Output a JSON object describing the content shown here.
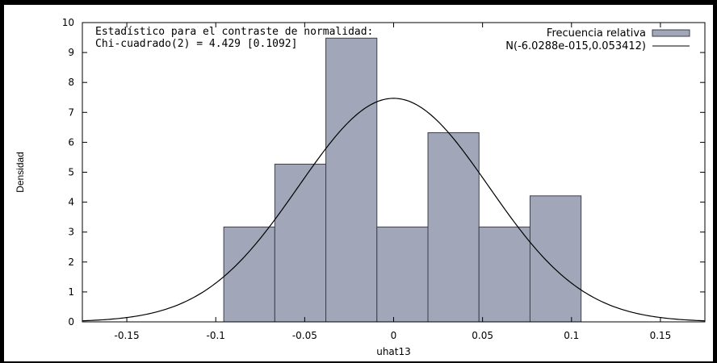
{
  "chart_data": {
    "type": "bar",
    "title": "",
    "xlabel": "uhat13",
    "ylabel": "Densidad",
    "xlim": [
      -0.175,
      0.175
    ],
    "ylim": [
      0,
      10
    ],
    "xticks": [
      -0.15,
      -0.1,
      -0.05,
      0,
      0.05,
      0.1,
      0.15
    ],
    "xtick_labels": [
      "-0.15",
      "-0.1",
      "-0.05",
      "0",
      "0.05",
      "0.1",
      "0.15"
    ],
    "yticks": [
      0,
      1,
      2,
      3,
      4,
      5,
      6,
      7,
      8,
      9,
      10
    ],
    "ytick_labels": [
      "0",
      "1",
      "2",
      "3",
      "4",
      "5",
      "6",
      "7",
      "8",
      "9",
      "10"
    ],
    "annotations": [
      "Estadístico para el contraste de normalidad:",
      "Chi-cuadrado(2) = 4.429 [0.1092]"
    ],
    "legend_position": "top-right",
    "series": [
      {
        "name": "Frecuencia relativa",
        "kind": "histogram",
        "color": "#a1a7b8",
        "edge_color": "#3c3f4c",
        "bin_width": 0.0287,
        "bin_left_edges": [
          -0.0955,
          -0.0668,
          -0.0381,
          -0.0094,
          0.0193,
          0.048,
          0.0767
        ],
        "values": [
          3.17,
          5.27,
          9.48,
          3.17,
          6.32,
          3.17,
          4.21
        ]
      },
      {
        "name": "N(-6.0288e-015,0.053412)",
        "kind": "line",
        "color": "#000000",
        "distribution": "normal",
        "mean": -6.0288e-15,
        "std": 0.053412
      }
    ],
    "grid": false,
    "colors": {
      "frame": "#000000",
      "background": "#ffffff",
      "bars": "#a1a7b8",
      "bar_edges": "#3c3f4c",
      "curve": "#000000"
    }
  }
}
